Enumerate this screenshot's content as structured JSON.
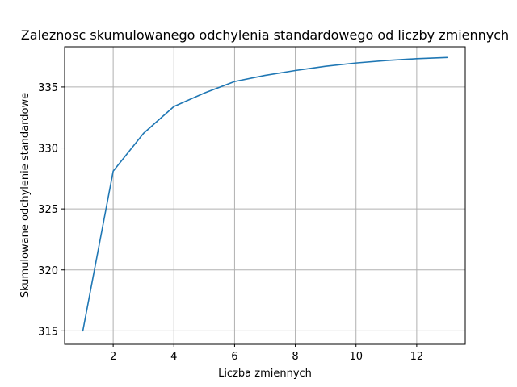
{
  "chart_data": {
    "type": "line",
    "title": "Zaleznosc skumulowanego odchylenia standardowego od liczby zmiennych",
    "xlabel": "Liczba zmiennych",
    "ylabel": "Skumulowane odchylenie standardowe",
    "xlim": [
      0.4,
      13.6
    ],
    "ylim": [
      313.9,
      338.3
    ],
    "xticks": [
      2,
      4,
      6,
      8,
      10,
      12
    ],
    "yticks": [
      315,
      320,
      325,
      330,
      335
    ],
    "grid": true,
    "legend": "none",
    "series": [
      {
        "color": "#1f77b4",
        "x": [
          1,
          2,
          3,
          4,
          5,
          6,
          7,
          8,
          9,
          10,
          11,
          12,
          13
        ],
        "y": [
          315.0,
          328.1,
          331.2,
          333.4,
          334.5,
          335.45,
          335.95,
          336.35,
          336.7,
          336.97,
          337.17,
          337.32,
          337.42
        ]
      }
    ]
  }
}
